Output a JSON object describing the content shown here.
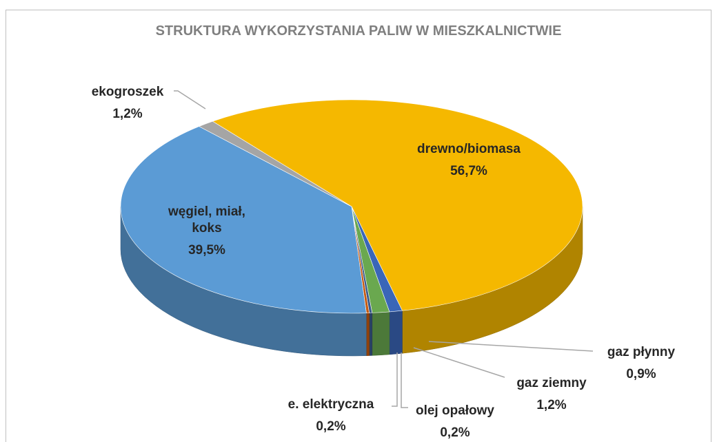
{
  "chart_data": {
    "type": "pie",
    "title": "STRUKTURA WYKORZYSTANIA PALIW W MIESZKALNICTWIE",
    "categories": [
      "drewno/biomasa",
      "gaz płynny",
      "gaz ziemny",
      "olej opałowy",
      "e. elektryczna",
      "węgiel, miał, koks",
      "ekogroszek"
    ],
    "values": [
      56.7,
      0.9,
      1.2,
      0.2,
      0.2,
      39.5,
      1.2
    ],
    "value_labels": [
      "56,7%",
      "0,9%",
      "1,2%",
      "0,2%",
      "0,2%",
      "39,5%",
      "1,2%"
    ],
    "colors": [
      "#f5b800",
      "#3a66b8",
      "#6aa84f",
      "#3a5a8a",
      "#c55a11",
      "#5b9bd5",
      "#a5a5a5"
    ]
  }
}
